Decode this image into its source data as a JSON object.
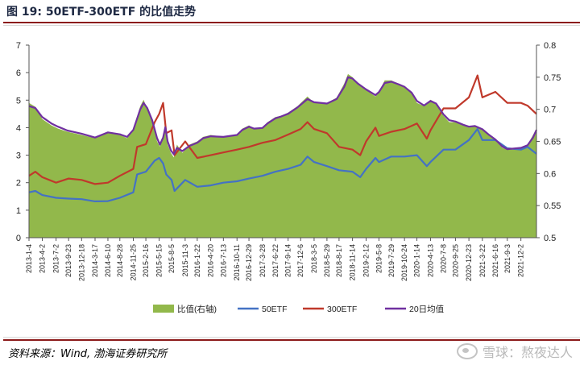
{
  "header": {
    "title": "图 19:  50ETF-300ETF 的比值走势"
  },
  "footer": {
    "source": "资料来源：Wind, 渤海证券研究所",
    "watermark": "雪球：熬夜达人"
  },
  "chart_data": {
    "type": "line",
    "title": "",
    "xlabel": "",
    "ylabel_left": "",
    "ylabel_right": "",
    "left_axis": {
      "min": 0,
      "max": 7,
      "ticks": [
        0,
        1,
        2,
        3,
        4,
        5,
        6,
        7
      ]
    },
    "right_axis": {
      "min": 0.5,
      "max": 0.8,
      "ticks": [
        "0.5",
        "0.55",
        "0.6",
        "0.65",
        "0.7",
        "0.75",
        "0.8"
      ]
    },
    "x_range": [
      "2013-01-04",
      "2022-03-15"
    ],
    "x_ticks": [
      "2013-1-4",
      "2013-4-2",
      "2013-7-2",
      "2013-9-23",
      "2013-12-18",
      "2014-3-17",
      "2014-6-10",
      "2014-8-28",
      "2014-11-25",
      "2015-2-16",
      "2015-5-15",
      "2015-8-5",
      "2015-11-3",
      "2016-1-22",
      "2016-4-20",
      "2016-7-13",
      "2016-10-11",
      "2016-12-29",
      "2017-3-28",
      "2017-6-22",
      "2017-9-14",
      "2017-12-6",
      "2018-3-5",
      "2018-5-29",
      "2018-8-17",
      "2018-11-14",
      "2019-2-12",
      "2019-5-8",
      "2019-7-29",
      "2019-10-24",
      "2020-1-14",
      "2020-4-13",
      "2020-7-8",
      "2020-9-25",
      "2020-12-23",
      "2021-3-22",
      "2021-6-16",
      "2021-9-3",
      "2021-12-2"
    ],
    "grid": false,
    "legend_position": "bottom",
    "series": [
      {
        "name": "比值(右轴)",
        "type": "area",
        "axis": "right",
        "color": "#92b84b",
        "points": [
          [
            "2013-01-04",
            0.71
          ],
          [
            "2013-02-15",
            0.704
          ],
          [
            "2013-04-01",
            0.685
          ],
          [
            "2013-06-01",
            0.675
          ],
          [
            "2013-07-15",
            0.67
          ],
          [
            "2013-09-15",
            0.665
          ],
          [
            "2013-12-18",
            0.66
          ],
          [
            "2014-03-17",
            0.655
          ],
          [
            "2014-06-10",
            0.665
          ],
          [
            "2014-08-28",
            0.66
          ],
          [
            "2014-10-15",
            0.655
          ],
          [
            "2014-11-25",
            0.67
          ],
          [
            "2015-01-10",
            0.705
          ],
          [
            "2015-02-01",
            0.715
          ],
          [
            "2015-02-25",
            0.7
          ],
          [
            "2015-03-30",
            0.68
          ],
          [
            "2015-05-01",
            0.65
          ],
          [
            "2015-05-20",
            0.642
          ],
          [
            "2015-06-10",
            0.66
          ],
          [
            "2015-06-25",
            0.68
          ],
          [
            "2015-07-10",
            0.645
          ],
          [
            "2015-08-01",
            0.632
          ],
          [
            "2015-08-20",
            0.625
          ],
          [
            "2015-09-10",
            0.645
          ],
          [
            "2015-10-15",
            0.632
          ],
          [
            "2015-12-01",
            0.645
          ],
          [
            "2016-01-22",
            0.65
          ],
          [
            "2016-03-01",
            0.657
          ],
          [
            "2016-04-20",
            0.66
          ],
          [
            "2016-07-13",
            0.657
          ],
          [
            "2016-10-11",
            0.66
          ],
          [
            "2016-11-15",
            0.67
          ],
          [
            "2016-12-29",
            0.675
          ],
          [
            "2017-02-01",
            0.67
          ],
          [
            "2017-03-28",
            0.672
          ],
          [
            "2017-05-01",
            0.68
          ],
          [
            "2017-06-22",
            0.688
          ],
          [
            "2017-08-01",
            0.69
          ],
          [
            "2017-09-14",
            0.695
          ],
          [
            "2017-11-15",
            0.705
          ],
          [
            "2018-01-20",
            0.72
          ],
          [
            "2018-03-05",
            0.71
          ],
          [
            "2018-05-29",
            0.71
          ],
          [
            "2018-08-01",
            0.718
          ],
          [
            "2018-09-20",
            0.74
          ],
          [
            "2018-10-15",
            0.755
          ],
          [
            "2018-11-14",
            0.75
          ],
          [
            "2018-12-20",
            0.74
          ],
          [
            "2019-02-12",
            0.73
          ],
          [
            "2019-04-15",
            0.72
          ],
          [
            "2019-05-08",
            0.728
          ],
          [
            "2019-06-15",
            0.745
          ],
          [
            "2019-07-29",
            0.745
          ],
          [
            "2019-09-15",
            0.74
          ],
          [
            "2019-10-24",
            0.735
          ],
          [
            "2019-12-10",
            0.725
          ],
          [
            "2020-01-14",
            0.71
          ],
          [
            "2020-03-01",
            0.705
          ],
          [
            "2020-04-13",
            0.715
          ],
          [
            "2020-05-20",
            0.71
          ],
          [
            "2020-07-08",
            0.69
          ],
          [
            "2020-08-15",
            0.68
          ],
          [
            "2020-09-25",
            0.68
          ],
          [
            "2020-11-15",
            0.675
          ],
          [
            "2020-12-23",
            0.672
          ],
          [
            "2021-02-01",
            0.675
          ],
          [
            "2021-03-22",
            0.668
          ],
          [
            "2021-05-01",
            0.66
          ],
          [
            "2021-06-16",
            0.652
          ],
          [
            "2021-08-01",
            0.64
          ],
          [
            "2021-09-03",
            0.637
          ],
          [
            "2021-10-15",
            0.64
          ],
          [
            "2021-12-02",
            0.64
          ],
          [
            "2022-01-15",
            0.645
          ],
          [
            "2022-02-20",
            0.66
          ],
          [
            "2022-03-15",
            0.67
          ]
        ]
      },
      {
        "name": "50ETF",
        "type": "line",
        "axis": "left",
        "color": "#4472c4",
        "points": [
          [
            "2013-01-04",
            1.65
          ],
          [
            "2013-02-15",
            1.7
          ],
          [
            "2013-04-02",
            1.55
          ],
          [
            "2013-07-02",
            1.45
          ],
          [
            "2013-09-23",
            1.42
          ],
          [
            "2013-12-18",
            1.4
          ],
          [
            "2014-03-17",
            1.32
          ],
          [
            "2014-06-10",
            1.33
          ],
          [
            "2014-08-28",
            1.45
          ],
          [
            "2014-11-25",
            1.65
          ],
          [
            "2014-12-20",
            2.3
          ],
          [
            "2015-02-16",
            2.4
          ],
          [
            "2015-04-15",
            2.8
          ],
          [
            "2015-05-15",
            2.9
          ],
          [
            "2015-06-10",
            2.7
          ],
          [
            "2015-07-01",
            2.3
          ],
          [
            "2015-08-05",
            2.1
          ],
          [
            "2015-08-25",
            1.7
          ],
          [
            "2015-11-03",
            2.1
          ],
          [
            "2016-01-22",
            1.85
          ],
          [
            "2016-04-20",
            1.9
          ],
          [
            "2016-07-13",
            2.0
          ],
          [
            "2016-10-11",
            2.05
          ],
          [
            "2016-12-29",
            2.15
          ],
          [
            "2017-03-28",
            2.25
          ],
          [
            "2017-06-22",
            2.4
          ],
          [
            "2017-09-14",
            2.5
          ],
          [
            "2017-12-06",
            2.65
          ],
          [
            "2018-01-20",
            2.95
          ],
          [
            "2018-03-05",
            2.75
          ],
          [
            "2018-05-29",
            2.6
          ],
          [
            "2018-08-17",
            2.45
          ],
          [
            "2018-11-14",
            2.4
          ],
          [
            "2019-01-04",
            2.2
          ],
          [
            "2019-02-12",
            2.5
          ],
          [
            "2019-04-15",
            2.9
          ],
          [
            "2019-05-08",
            2.75
          ],
          [
            "2019-07-29",
            2.95
          ],
          [
            "2019-10-24",
            2.95
          ],
          [
            "2020-01-14",
            3.0
          ],
          [
            "2020-03-20",
            2.6
          ],
          [
            "2020-04-13",
            2.75
          ],
          [
            "2020-07-08",
            3.2
          ],
          [
            "2020-09-25",
            3.2
          ],
          [
            "2020-12-23",
            3.55
          ],
          [
            "2021-02-18",
            3.95
          ],
          [
            "2021-03-22",
            3.55
          ],
          [
            "2021-06-16",
            3.55
          ],
          [
            "2021-09-03",
            3.25
          ],
          [
            "2021-12-02",
            3.2
          ],
          [
            "2022-01-15",
            3.3
          ],
          [
            "2022-03-15",
            3.05
          ]
        ]
      },
      {
        "name": "300ETF",
        "type": "line",
        "axis": "left",
        "color": "#c0392b",
        "points": [
          [
            "2013-01-04",
            2.25
          ],
          [
            "2013-02-15",
            2.4
          ],
          [
            "2013-04-02",
            2.2
          ],
          [
            "2013-07-02",
            2.0
          ],
          [
            "2013-09-23",
            2.15
          ],
          [
            "2013-12-18",
            2.1
          ],
          [
            "2014-03-17",
            1.95
          ],
          [
            "2014-06-10",
            2.0
          ],
          [
            "2014-08-28",
            2.25
          ],
          [
            "2014-11-25",
            2.5
          ],
          [
            "2014-12-20",
            3.3
          ],
          [
            "2015-02-16",
            3.4
          ],
          [
            "2015-04-15",
            4.2
          ],
          [
            "2015-05-15",
            4.5
          ],
          [
            "2015-06-10",
            4.9
          ],
          [
            "2015-07-01",
            3.8
          ],
          [
            "2015-08-05",
            3.9
          ],
          [
            "2015-08-25",
            3.0
          ],
          [
            "2015-11-03",
            3.5
          ],
          [
            "2016-01-22",
            2.9
          ],
          [
            "2016-04-20",
            3.0
          ],
          [
            "2016-07-13",
            3.1
          ],
          [
            "2016-10-11",
            3.2
          ],
          [
            "2016-12-29",
            3.3
          ],
          [
            "2017-03-28",
            3.45
          ],
          [
            "2017-06-22",
            3.55
          ],
          [
            "2017-09-14",
            3.75
          ],
          [
            "2017-12-06",
            3.95
          ],
          [
            "2018-01-20",
            4.2
          ],
          [
            "2018-03-05",
            3.95
          ],
          [
            "2018-05-29",
            3.8
          ],
          [
            "2018-08-17",
            3.3
          ],
          [
            "2018-11-14",
            3.2
          ],
          [
            "2019-01-04",
            3.0
          ],
          [
            "2019-02-12",
            3.5
          ],
          [
            "2019-04-15",
            4.0
          ],
          [
            "2019-05-08",
            3.7
          ],
          [
            "2019-07-29",
            3.85
          ],
          [
            "2019-10-24",
            3.95
          ],
          [
            "2020-01-14",
            4.15
          ],
          [
            "2020-03-20",
            3.6
          ],
          [
            "2020-04-13",
            3.9
          ],
          [
            "2020-07-08",
            4.7
          ],
          [
            "2020-09-25",
            4.7
          ],
          [
            "2020-12-23",
            5.1
          ],
          [
            "2021-02-18",
            5.9
          ],
          [
            "2021-03-22",
            5.1
          ],
          [
            "2021-06-16",
            5.3
          ],
          [
            "2021-09-03",
            4.9
          ],
          [
            "2021-12-02",
            4.9
          ],
          [
            "2022-01-15",
            4.8
          ],
          [
            "2022-03-15",
            4.5
          ]
        ]
      },
      {
        "name": "20日均值",
        "type": "line",
        "axis": "right",
        "color": "#7030a0",
        "points": [
          [
            "2013-01-04",
            0.705
          ],
          [
            "2013-02-15",
            0.702
          ],
          [
            "2013-04-01",
            0.688
          ],
          [
            "2013-06-01",
            0.678
          ],
          [
            "2013-07-15",
            0.673
          ],
          [
            "2013-09-15",
            0.667
          ],
          [
            "2013-12-18",
            0.662
          ],
          [
            "2014-03-17",
            0.656
          ],
          [
            "2014-06-10",
            0.664
          ],
          [
            "2014-08-28",
            0.661
          ],
          [
            "2014-10-15",
            0.657
          ],
          [
            "2014-11-25",
            0.668
          ],
          [
            "2015-01-10",
            0.7
          ],
          [
            "2015-02-01",
            0.71
          ],
          [
            "2015-02-25",
            0.702
          ],
          [
            "2015-03-30",
            0.683
          ],
          [
            "2015-05-01",
            0.655
          ],
          [
            "2015-05-20",
            0.645
          ],
          [
            "2015-06-10",
            0.656
          ],
          [
            "2015-06-25",
            0.672
          ],
          [
            "2015-07-10",
            0.65
          ],
          [
            "2015-08-01",
            0.636
          ],
          [
            "2015-08-20",
            0.63
          ],
          [
            "2015-09-10",
            0.64
          ],
          [
            "2015-10-15",
            0.635
          ],
          [
            "2015-12-01",
            0.643
          ],
          [
            "2016-01-22",
            0.648
          ],
          [
            "2016-03-01",
            0.655
          ],
          [
            "2016-04-20",
            0.658
          ],
          [
            "2016-07-13",
            0.657
          ],
          [
            "2016-10-11",
            0.66
          ],
          [
            "2016-11-15",
            0.668
          ],
          [
            "2016-12-29",
            0.673
          ],
          [
            "2017-02-01",
            0.67
          ],
          [
            "2017-03-28",
            0.671
          ],
          [
            "2017-05-01",
            0.678
          ],
          [
            "2017-06-22",
            0.686
          ],
          [
            "2017-08-01",
            0.689
          ],
          [
            "2017-09-14",
            0.693
          ],
          [
            "2017-11-15",
            0.703
          ],
          [
            "2018-01-20",
            0.716
          ],
          [
            "2018-03-05",
            0.711
          ],
          [
            "2018-05-29",
            0.709
          ],
          [
            "2018-08-01",
            0.716
          ],
          [
            "2018-09-20",
            0.735
          ],
          [
            "2018-10-15",
            0.75
          ],
          [
            "2018-11-14",
            0.748
          ],
          [
            "2018-12-20",
            0.74
          ],
          [
            "2019-02-12",
            0.731
          ],
          [
            "2019-04-15",
            0.722
          ],
          [
            "2019-05-08",
            0.727
          ],
          [
            "2019-06-15",
            0.741
          ],
          [
            "2019-07-29",
            0.743
          ],
          [
            "2019-09-15",
            0.739
          ],
          [
            "2019-10-24",
            0.735
          ],
          [
            "2019-12-10",
            0.726
          ],
          [
            "2020-01-14",
            0.713
          ],
          [
            "2020-03-01",
            0.706
          ],
          [
            "2020-04-13",
            0.713
          ],
          [
            "2020-05-20",
            0.709
          ],
          [
            "2020-07-08",
            0.692
          ],
          [
            "2020-08-15",
            0.683
          ],
          [
            "2020-09-25",
            0.681
          ],
          [
            "2020-11-15",
            0.676
          ],
          [
            "2020-12-23",
            0.673
          ],
          [
            "2021-02-01",
            0.674
          ],
          [
            "2021-03-22",
            0.669
          ],
          [
            "2021-05-01",
            0.661
          ],
          [
            "2021-06-16",
            0.653
          ],
          [
            "2021-08-01",
            0.642
          ],
          [
            "2021-09-03",
            0.638
          ],
          [
            "2021-10-15",
            0.639
          ],
          [
            "2021-12-02",
            0.64
          ],
          [
            "2022-01-15",
            0.644
          ],
          [
            "2022-02-20",
            0.656
          ],
          [
            "2022-03-15",
            0.668
          ]
        ]
      }
    ]
  }
}
